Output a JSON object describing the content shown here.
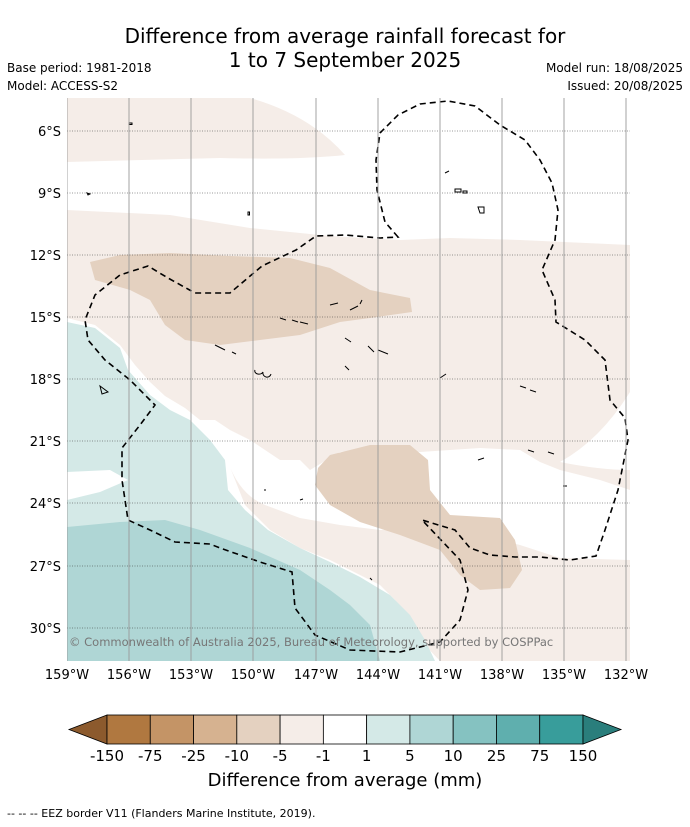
{
  "title": {
    "line1": "Difference from average rainfall forecast for",
    "line2": "1 to 7 September 2025"
  },
  "meta_left": [
    "Base period: 1981-2018",
    "Model: ACCESS-S2"
  ],
  "meta_right": [
    "Model run: 18/08/2025",
    "Issued: 20/08/2025"
  ],
  "map": {
    "lat_labels": [
      "6°S",
      "9°S",
      "12°S",
      "15°S",
      "18°S",
      "21°S",
      "24°S",
      "27°S",
      "30°S"
    ],
    "lon_labels": [
      "159°W",
      "156°W",
      "153°W",
      "150°W",
      "147°W",
      "144°W",
      "141°W",
      "138°W",
      "135°W",
      "132°W"
    ],
    "copyright": "© Commonwealth of Australia 2025, Bureau of Meteorology, supported by COSPPac"
  },
  "colorbar": {
    "label": "Difference from average (mm)",
    "ticks": [
      "-150",
      "-75",
      "-25",
      "-10",
      "-5",
      "-1",
      "1",
      "5",
      "10",
      "25",
      "75",
      "150"
    ],
    "colors": [
      "#8c5a2d",
      "#b07840",
      "#c49466",
      "#d6b290",
      "#e4d1c0",
      "#f5ede8",
      "#ffffff",
      "#d4e9e7",
      "#afd6d5",
      "#85c2c1",
      "#5fafae",
      "#389d9b",
      "#2a7e7c"
    ]
  },
  "footnote": "--  --  -- EEZ border V11 (Flanders Marine Institute, 2019)."
}
